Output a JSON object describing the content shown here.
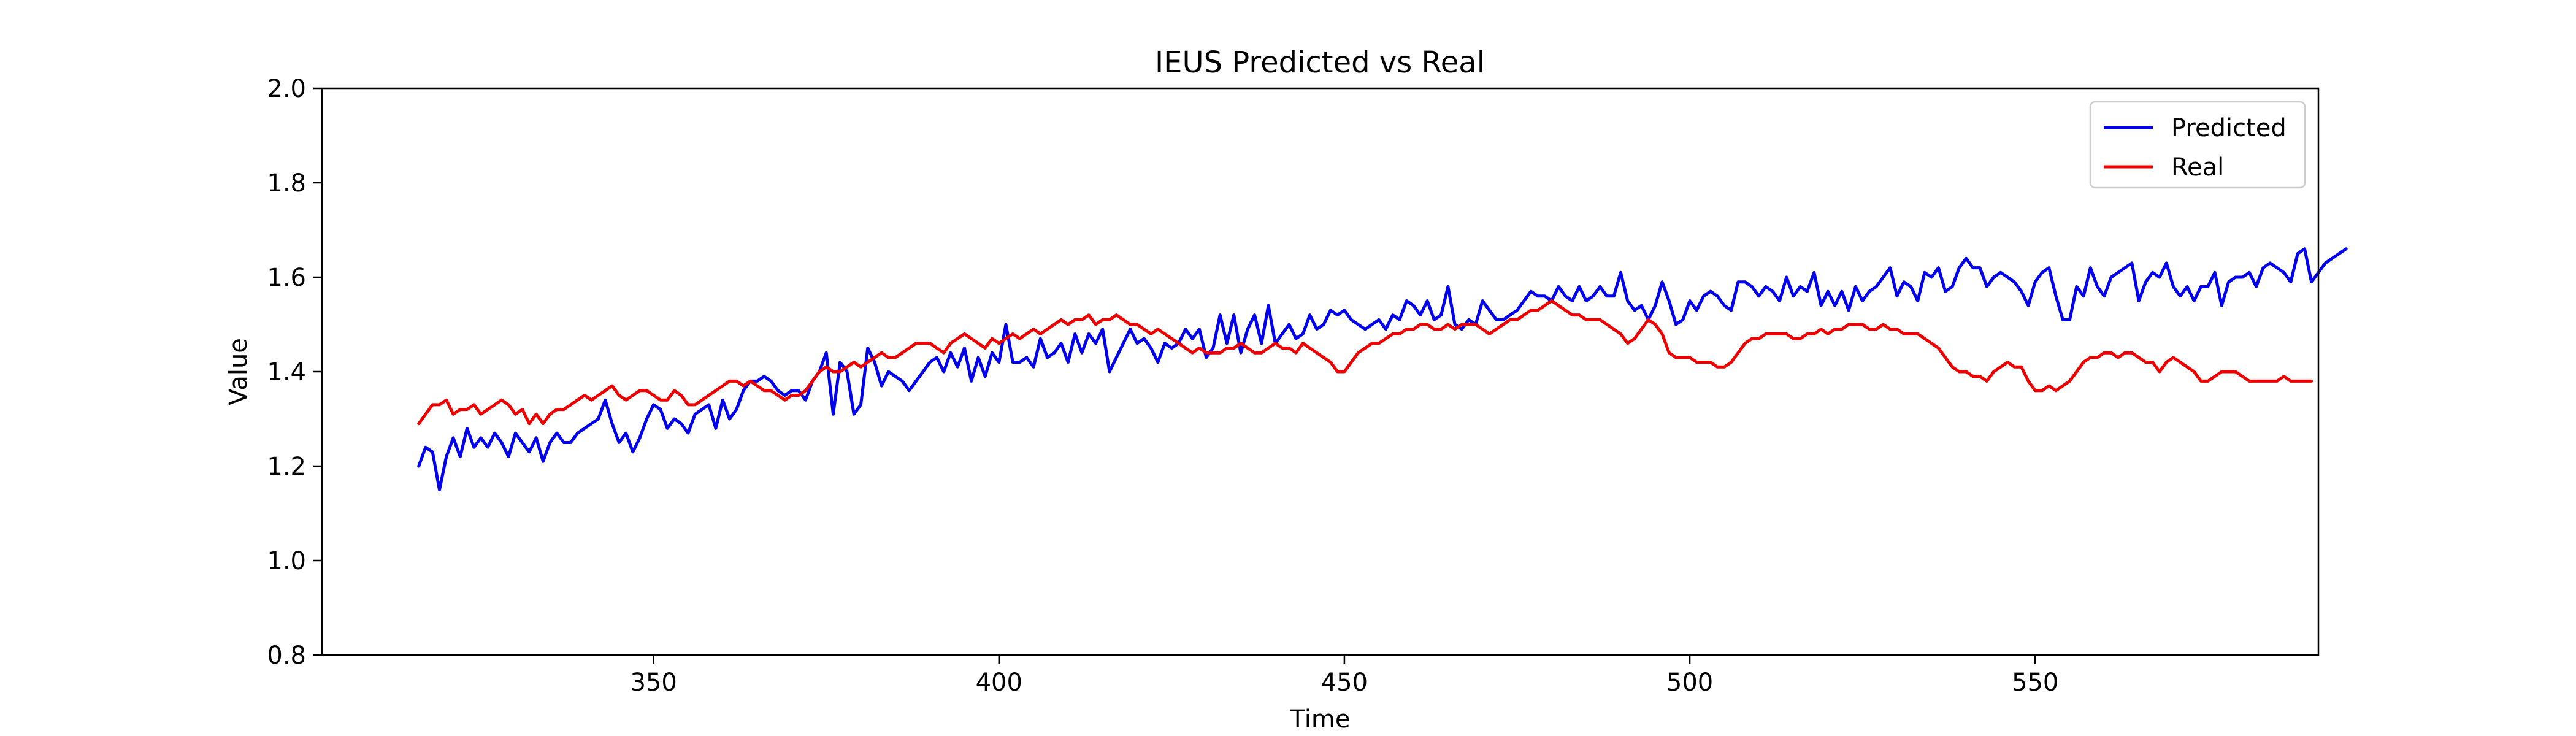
{
  "chart_data": {
    "type": "line",
    "title": "IEUS Predicted vs Real",
    "xlabel": "Time",
    "ylabel": "Value",
    "xlim": [
      302,
      591
    ],
    "ylim": [
      0.8,
      2.0
    ],
    "xticks": [
      350,
      400,
      450,
      500,
      550
    ],
    "yticks": [
      0.8,
      1.0,
      1.2,
      1.4,
      1.6,
      1.8,
      2.0
    ],
    "ytick_labels": [
      "0.8",
      "1.0",
      "1.2",
      "1.4",
      "1.6",
      "1.8",
      "2.0"
    ],
    "grid": false,
    "legend_position": "top-right",
    "series": [
      {
        "name": "Predicted",
        "color": "#0000ee",
        "x_start": 316,
        "x_step": 1,
        "values": [
          1.2,
          1.24,
          1.23,
          1.15,
          1.22,
          1.26,
          1.22,
          1.28,
          1.24,
          1.26,
          1.24,
          1.27,
          1.25,
          1.22,
          1.27,
          1.25,
          1.23,
          1.26,
          1.21,
          1.25,
          1.27,
          1.25,
          1.25,
          1.27,
          1.28,
          1.29,
          1.3,
          1.34,
          1.29,
          1.25,
          1.27,
          1.23,
          1.26,
          1.3,
          1.33,
          1.32,
          1.28,
          1.3,
          1.29,
          1.27,
          1.31,
          1.32,
          1.33,
          1.28,
          1.34,
          1.3,
          1.32,
          1.36,
          1.38,
          1.38,
          1.39,
          1.38,
          1.36,
          1.35,
          1.36,
          1.36,
          1.34,
          1.38,
          1.4,
          1.44,
          1.31,
          1.42,
          1.4,
          1.31,
          1.33,
          1.45,
          1.42,
          1.37,
          1.4,
          1.39,
          1.38,
          1.36,
          1.38,
          1.4,
          1.42,
          1.43,
          1.4,
          1.44,
          1.41,
          1.45,
          1.38,
          1.43,
          1.39,
          1.44,
          1.42,
          1.5,
          1.42,
          1.42,
          1.43,
          1.41,
          1.47,
          1.43,
          1.44,
          1.46,
          1.42,
          1.48,
          1.44,
          1.48,
          1.46,
          1.49,
          1.4,
          1.43,
          1.46,
          1.49,
          1.46,
          1.47,
          1.45,
          1.42,
          1.46,
          1.45,
          1.46,
          1.49,
          1.47,
          1.49,
          1.43,
          1.45,
          1.52,
          1.46,
          1.52,
          1.44,
          1.49,
          1.52,
          1.46,
          1.54,
          1.46,
          1.48,
          1.5,
          1.47,
          1.48,
          1.52,
          1.49,
          1.5,
          1.53,
          1.52,
          1.53,
          1.51,
          1.5,
          1.49,
          1.5,
          1.51,
          1.49,
          1.52,
          1.51,
          1.55,
          1.54,
          1.52,
          1.55,
          1.51,
          1.52,
          1.58,
          1.5,
          1.49,
          1.51,
          1.5,
          1.55,
          1.53,
          1.51,
          1.51,
          1.52,
          1.53,
          1.55,
          1.57,
          1.56,
          1.56,
          1.55,
          1.58,
          1.56,
          1.55,
          1.58,
          1.55,
          1.56,
          1.58,
          1.56,
          1.56,
          1.61,
          1.55,
          1.53,
          1.54,
          1.51,
          1.54,
          1.59,
          1.55,
          1.5,
          1.51,
          1.55,
          1.53,
          1.56,
          1.57,
          1.56,
          1.54,
          1.53,
          1.59,
          1.59,
          1.58,
          1.56,
          1.58,
          1.57,
          1.55,
          1.6,
          1.56,
          1.58,
          1.57,
          1.61,
          1.54,
          1.57,
          1.54,
          1.57,
          1.53,
          1.58,
          1.55,
          1.57,
          1.58,
          1.6,
          1.62,
          1.56,
          1.59,
          1.58,
          1.55,
          1.61,
          1.6,
          1.62,
          1.57,
          1.58,
          1.62,
          1.64,
          1.62,
          1.62,
          1.58,
          1.6,
          1.61,
          1.6,
          1.59,
          1.57,
          1.54,
          1.59,
          1.61,
          1.62,
          1.56,
          1.51,
          1.51,
          1.58,
          1.56,
          1.62,
          1.58,
          1.56,
          1.6,
          1.61,
          1.62,
          1.63,
          1.55,
          1.59,
          1.61,
          1.6,
          1.63,
          1.58,
          1.56,
          1.58,
          1.55,
          1.58,
          1.58,
          1.61,
          1.54,
          1.59,
          1.6,
          1.6,
          1.61,
          1.58,
          1.62,
          1.63,
          1.62,
          1.61,
          1.59,
          1.65,
          1.66,
          1.59,
          1.61,
          1.63,
          1.64,
          1.65,
          1.66
        ]
      },
      {
        "name": "Real",
        "color": "#ee0000",
        "x_start": 316,
        "x_step": 1,
        "values": [
          1.29,
          1.31,
          1.33,
          1.33,
          1.34,
          1.31,
          1.32,
          1.32,
          1.33,
          1.31,
          1.32,
          1.33,
          1.34,
          1.33,
          1.31,
          1.32,
          1.29,
          1.31,
          1.29,
          1.31,
          1.32,
          1.32,
          1.33,
          1.34,
          1.35,
          1.34,
          1.35,
          1.36,
          1.37,
          1.35,
          1.34,
          1.35,
          1.36,
          1.36,
          1.35,
          1.34,
          1.34,
          1.36,
          1.35,
          1.33,
          1.33,
          1.34,
          1.35,
          1.36,
          1.37,
          1.38,
          1.38,
          1.37,
          1.38,
          1.37,
          1.36,
          1.36,
          1.35,
          1.34,
          1.35,
          1.35,
          1.36,
          1.38,
          1.4,
          1.41,
          1.4,
          1.4,
          1.41,
          1.42,
          1.41,
          1.42,
          1.43,
          1.44,
          1.43,
          1.43,
          1.44,
          1.45,
          1.46,
          1.46,
          1.46,
          1.45,
          1.44,
          1.46,
          1.47,
          1.48,
          1.47,
          1.46,
          1.45,
          1.47,
          1.46,
          1.47,
          1.48,
          1.47,
          1.48,
          1.49,
          1.48,
          1.49,
          1.5,
          1.51,
          1.5,
          1.51,
          1.51,
          1.52,
          1.5,
          1.51,
          1.51,
          1.52,
          1.51,
          1.5,
          1.5,
          1.49,
          1.48,
          1.49,
          1.48,
          1.47,
          1.46,
          1.45,
          1.44,
          1.45,
          1.44,
          1.44,
          1.44,
          1.45,
          1.45,
          1.46,
          1.45,
          1.44,
          1.44,
          1.45,
          1.46,
          1.45,
          1.45,
          1.44,
          1.46,
          1.45,
          1.44,
          1.43,
          1.42,
          1.4,
          1.4,
          1.42,
          1.44,
          1.45,
          1.46,
          1.46,
          1.47,
          1.48,
          1.48,
          1.49,
          1.49,
          1.5,
          1.5,
          1.49,
          1.49,
          1.5,
          1.49,
          1.5,
          1.5,
          1.5,
          1.49,
          1.48,
          1.49,
          1.5,
          1.51,
          1.51,
          1.52,
          1.53,
          1.53,
          1.54,
          1.55,
          1.54,
          1.53,
          1.52,
          1.52,
          1.51,
          1.51,
          1.51,
          1.5,
          1.49,
          1.48,
          1.46,
          1.47,
          1.49,
          1.51,
          1.5,
          1.48,
          1.44,
          1.43,
          1.43,
          1.43,
          1.42,
          1.42,
          1.42,
          1.41,
          1.41,
          1.42,
          1.44,
          1.46,
          1.47,
          1.47,
          1.48,
          1.48,
          1.48,
          1.48,
          1.47,
          1.47,
          1.48,
          1.48,
          1.49,
          1.48,
          1.49,
          1.49,
          1.5,
          1.5,
          1.5,
          1.49,
          1.49,
          1.5,
          1.49,
          1.49,
          1.48,
          1.48,
          1.48,
          1.47,
          1.46,
          1.45,
          1.43,
          1.41,
          1.4,
          1.4,
          1.39,
          1.39,
          1.38,
          1.4,
          1.41,
          1.42,
          1.41,
          1.41,
          1.38,
          1.36,
          1.36,
          1.37,
          1.36,
          1.37,
          1.38,
          1.4,
          1.42,
          1.43,
          1.43,
          1.44,
          1.44,
          1.43,
          1.44,
          1.44,
          1.43,
          1.42,
          1.42,
          1.4,
          1.42,
          1.43,
          1.42,
          1.41,
          1.4,
          1.38,
          1.38,
          1.39,
          1.4,
          1.4,
          1.4,
          1.39,
          1.38,
          1.38,
          1.38,
          1.38,
          1.38,
          1.39,
          1.38,
          1.38,
          1.38,
          1.38
        ]
      }
    ]
  }
}
